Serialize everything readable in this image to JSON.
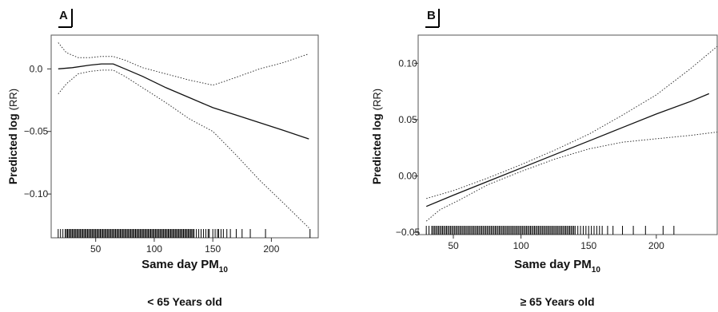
{
  "chart_data": [
    {
      "type": "line",
      "panel_label": "A",
      "xlabel_main": "Same day PM",
      "xlabel_sub": "10",
      "ylabel_main": "Predicted log",
      "ylabel_unit": "(RR)",
      "subtitle": "< 65 Years old",
      "xlim": [
        12,
        240
      ],
      "ylim": [
        -0.135,
        0.027
      ],
      "x_ticks": [
        50,
        100,
        150,
        200
      ],
      "x_tick_labels": [
        "50",
        "100",
        "150",
        "200"
      ],
      "y_ticks": [
        0.0,
        -0.05,
        -0.1
      ],
      "y_tick_labels": [
        "0.0",
        "−0.05",
        "−0.10"
      ],
      "series": [
        {
          "role": "estimate",
          "style": "solid",
          "x": [
            18,
            30,
            45,
            55,
            65,
            75,
            90,
            110,
            130,
            150,
            170,
            190,
            210,
            232
          ],
          "y": [
            0.0,
            0.001,
            0.003,
            0.004,
            0.004,
            0.0,
            -0.006,
            -0.015,
            -0.023,
            -0.031,
            -0.037,
            -0.043,
            -0.049,
            -0.056
          ]
        },
        {
          "role": "upper-ci",
          "style": "dotted",
          "x": [
            18,
            25,
            35,
            45,
            55,
            65,
            75,
            90,
            110,
            130,
            150,
            160,
            175,
            190,
            210,
            232
          ],
          "y": [
            0.021,
            0.013,
            0.009,
            0.009,
            0.01,
            0.01,
            0.007,
            0.001,
            -0.004,
            -0.009,
            -0.013,
            -0.01,
            -0.005,
            0.0,
            0.005,
            0.012
          ]
        },
        {
          "role": "lower-ci",
          "style": "dotted",
          "x": [
            18,
            25,
            35,
            45,
            55,
            65,
            75,
            90,
            110,
            130,
            150,
            170,
            190,
            210,
            232
          ],
          "y": [
            -0.02,
            -0.012,
            -0.004,
            -0.002,
            -0.001,
            -0.001,
            -0.006,
            -0.015,
            -0.027,
            -0.04,
            -0.05,
            -0.069,
            -0.089,
            -0.107,
            -0.127
          ]
        }
      ],
      "rug_x": [
        18,
        20,
        22,
        24,
        25,
        26,
        27,
        28,
        29,
        30,
        31,
        32,
        33,
        34,
        35,
        36,
        37,
        38,
        39,
        40,
        41,
        42,
        43,
        44,
        45,
        46,
        47,
        48,
        49,
        50,
        51,
        52,
        53,
        54,
        55,
        56,
        57,
        58,
        59,
        60,
        61,
        62,
        63,
        64,
        65,
        66,
        67,
        68,
        69,
        70,
        71,
        72,
        73,
        74,
        75,
        76,
        77,
        78,
        79,
        80,
        81,
        82,
        83,
        84,
        85,
        86,
        87,
        88,
        89,
        90,
        91,
        92,
        93,
        94,
        95,
        96,
        97,
        98,
        99,
        100,
        101,
        102,
        103,
        104,
        105,
        106,
        107,
        108,
        109,
        110,
        111,
        112,
        113,
        114,
        115,
        116,
        117,
        118,
        119,
        120,
        121,
        122,
        123,
        124,
        125,
        126,
        127,
        128,
        129,
        130,
        131,
        132,
        133,
        134,
        136,
        138,
        140,
        142,
        144,
        146,
        147,
        150,
        152,
        154,
        155,
        157,
        159,
        162,
        165,
        170,
        175,
        182,
        195,
        233
      ]
    },
    {
      "type": "line",
      "panel_label": "B",
      "xlabel_main": "Same day PM",
      "xlabel_sub": "10",
      "ylabel_main": "Predicted log",
      "ylabel_unit": "(RR)",
      "subtitle": "≥ 65 Years old",
      "xlim": [
        24,
        245
      ],
      "ylim": [
        -0.052,
        0.125
      ],
      "x_ticks": [
        50,
        100,
        150,
        200
      ],
      "x_tick_labels": [
        "50",
        "100",
        "150",
        "200"
      ],
      "y_ticks": [
        0.1,
        0.05,
        0.0,
        -0.05
      ],
      "y_tick_labels": [
        "0.10",
        "0.05",
        "0.00",
        "−0.05"
      ],
      "series": [
        {
          "role": "estimate",
          "style": "solid",
          "x": [
            30,
            50,
            75,
            100,
            125,
            150,
            175,
            200,
            225,
            239
          ],
          "y": [
            -0.027,
            -0.017,
            -0.005,
            0.007,
            0.019,
            0.031,
            0.043,
            0.055,
            0.066,
            0.073
          ]
        },
        {
          "role": "upper-ci",
          "style": "dotted",
          "x": [
            30,
            50,
            75,
            100,
            125,
            150,
            175,
            200,
            225,
            245
          ],
          "y": [
            -0.02,
            -0.013,
            -0.002,
            0.01,
            0.023,
            0.037,
            0.054,
            0.072,
            0.095,
            0.115
          ]
        },
        {
          "role": "lower-ci",
          "style": "dotted",
          "x": [
            30,
            40,
            55,
            75,
            100,
            125,
            150,
            175,
            200,
            225,
            245
          ],
          "y": [
            -0.04,
            -0.03,
            -0.021,
            -0.008,
            0.004,
            0.015,
            0.024,
            0.03,
            0.033,
            0.036,
            0.039
          ]
        }
      ],
      "rug_x": [
        30,
        32,
        34,
        35,
        36,
        37,
        38,
        39,
        40,
        41,
        42,
        43,
        44,
        45,
        46,
        47,
        48,
        49,
        50,
        51,
        52,
        53,
        54,
        55,
        56,
        57,
        58,
        59,
        60,
        61,
        62,
        63,
        64,
        65,
        66,
        67,
        68,
        69,
        70,
        71,
        72,
        73,
        74,
        75,
        76,
        77,
        78,
        79,
        80,
        81,
        82,
        83,
        84,
        85,
        86,
        87,
        88,
        89,
        90,
        91,
        92,
        93,
        94,
        95,
        96,
        97,
        98,
        99,
        100,
        101,
        102,
        103,
        104,
        105,
        106,
        107,
        108,
        109,
        110,
        111,
        112,
        113,
        114,
        115,
        116,
        117,
        118,
        119,
        120,
        121,
        122,
        123,
        124,
        125,
        126,
        127,
        128,
        129,
        130,
        131,
        132,
        133,
        134,
        135,
        136,
        137,
        138,
        139,
        140,
        142,
        144,
        146,
        148,
        150,
        152,
        154,
        156,
        158,
        160,
        164,
        168,
        175,
        183,
        192,
        205,
        213
      ]
    }
  ]
}
